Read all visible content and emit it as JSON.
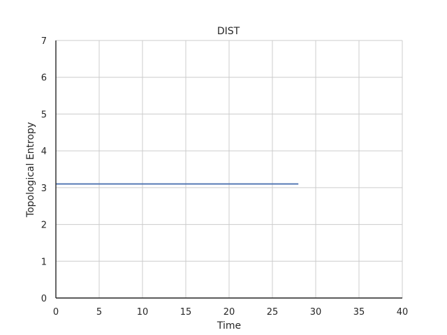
{
  "chart_data": {
    "type": "line",
    "title": "DIST",
    "xlabel": "Time",
    "ylabel": "Topological Entropy",
    "xlim": [
      0,
      40
    ],
    "ylim": [
      0,
      7
    ],
    "xticks": [
      0,
      5,
      10,
      15,
      20,
      25,
      30,
      35,
      40
    ],
    "yticks": [
      0,
      1,
      2,
      3,
      4,
      5,
      6,
      7
    ],
    "grid": true,
    "series": [
      {
        "color": "#4c72b0",
        "x": [
          0,
          28
        ],
        "y": [
          3.1,
          3.1
        ]
      }
    ]
  }
}
